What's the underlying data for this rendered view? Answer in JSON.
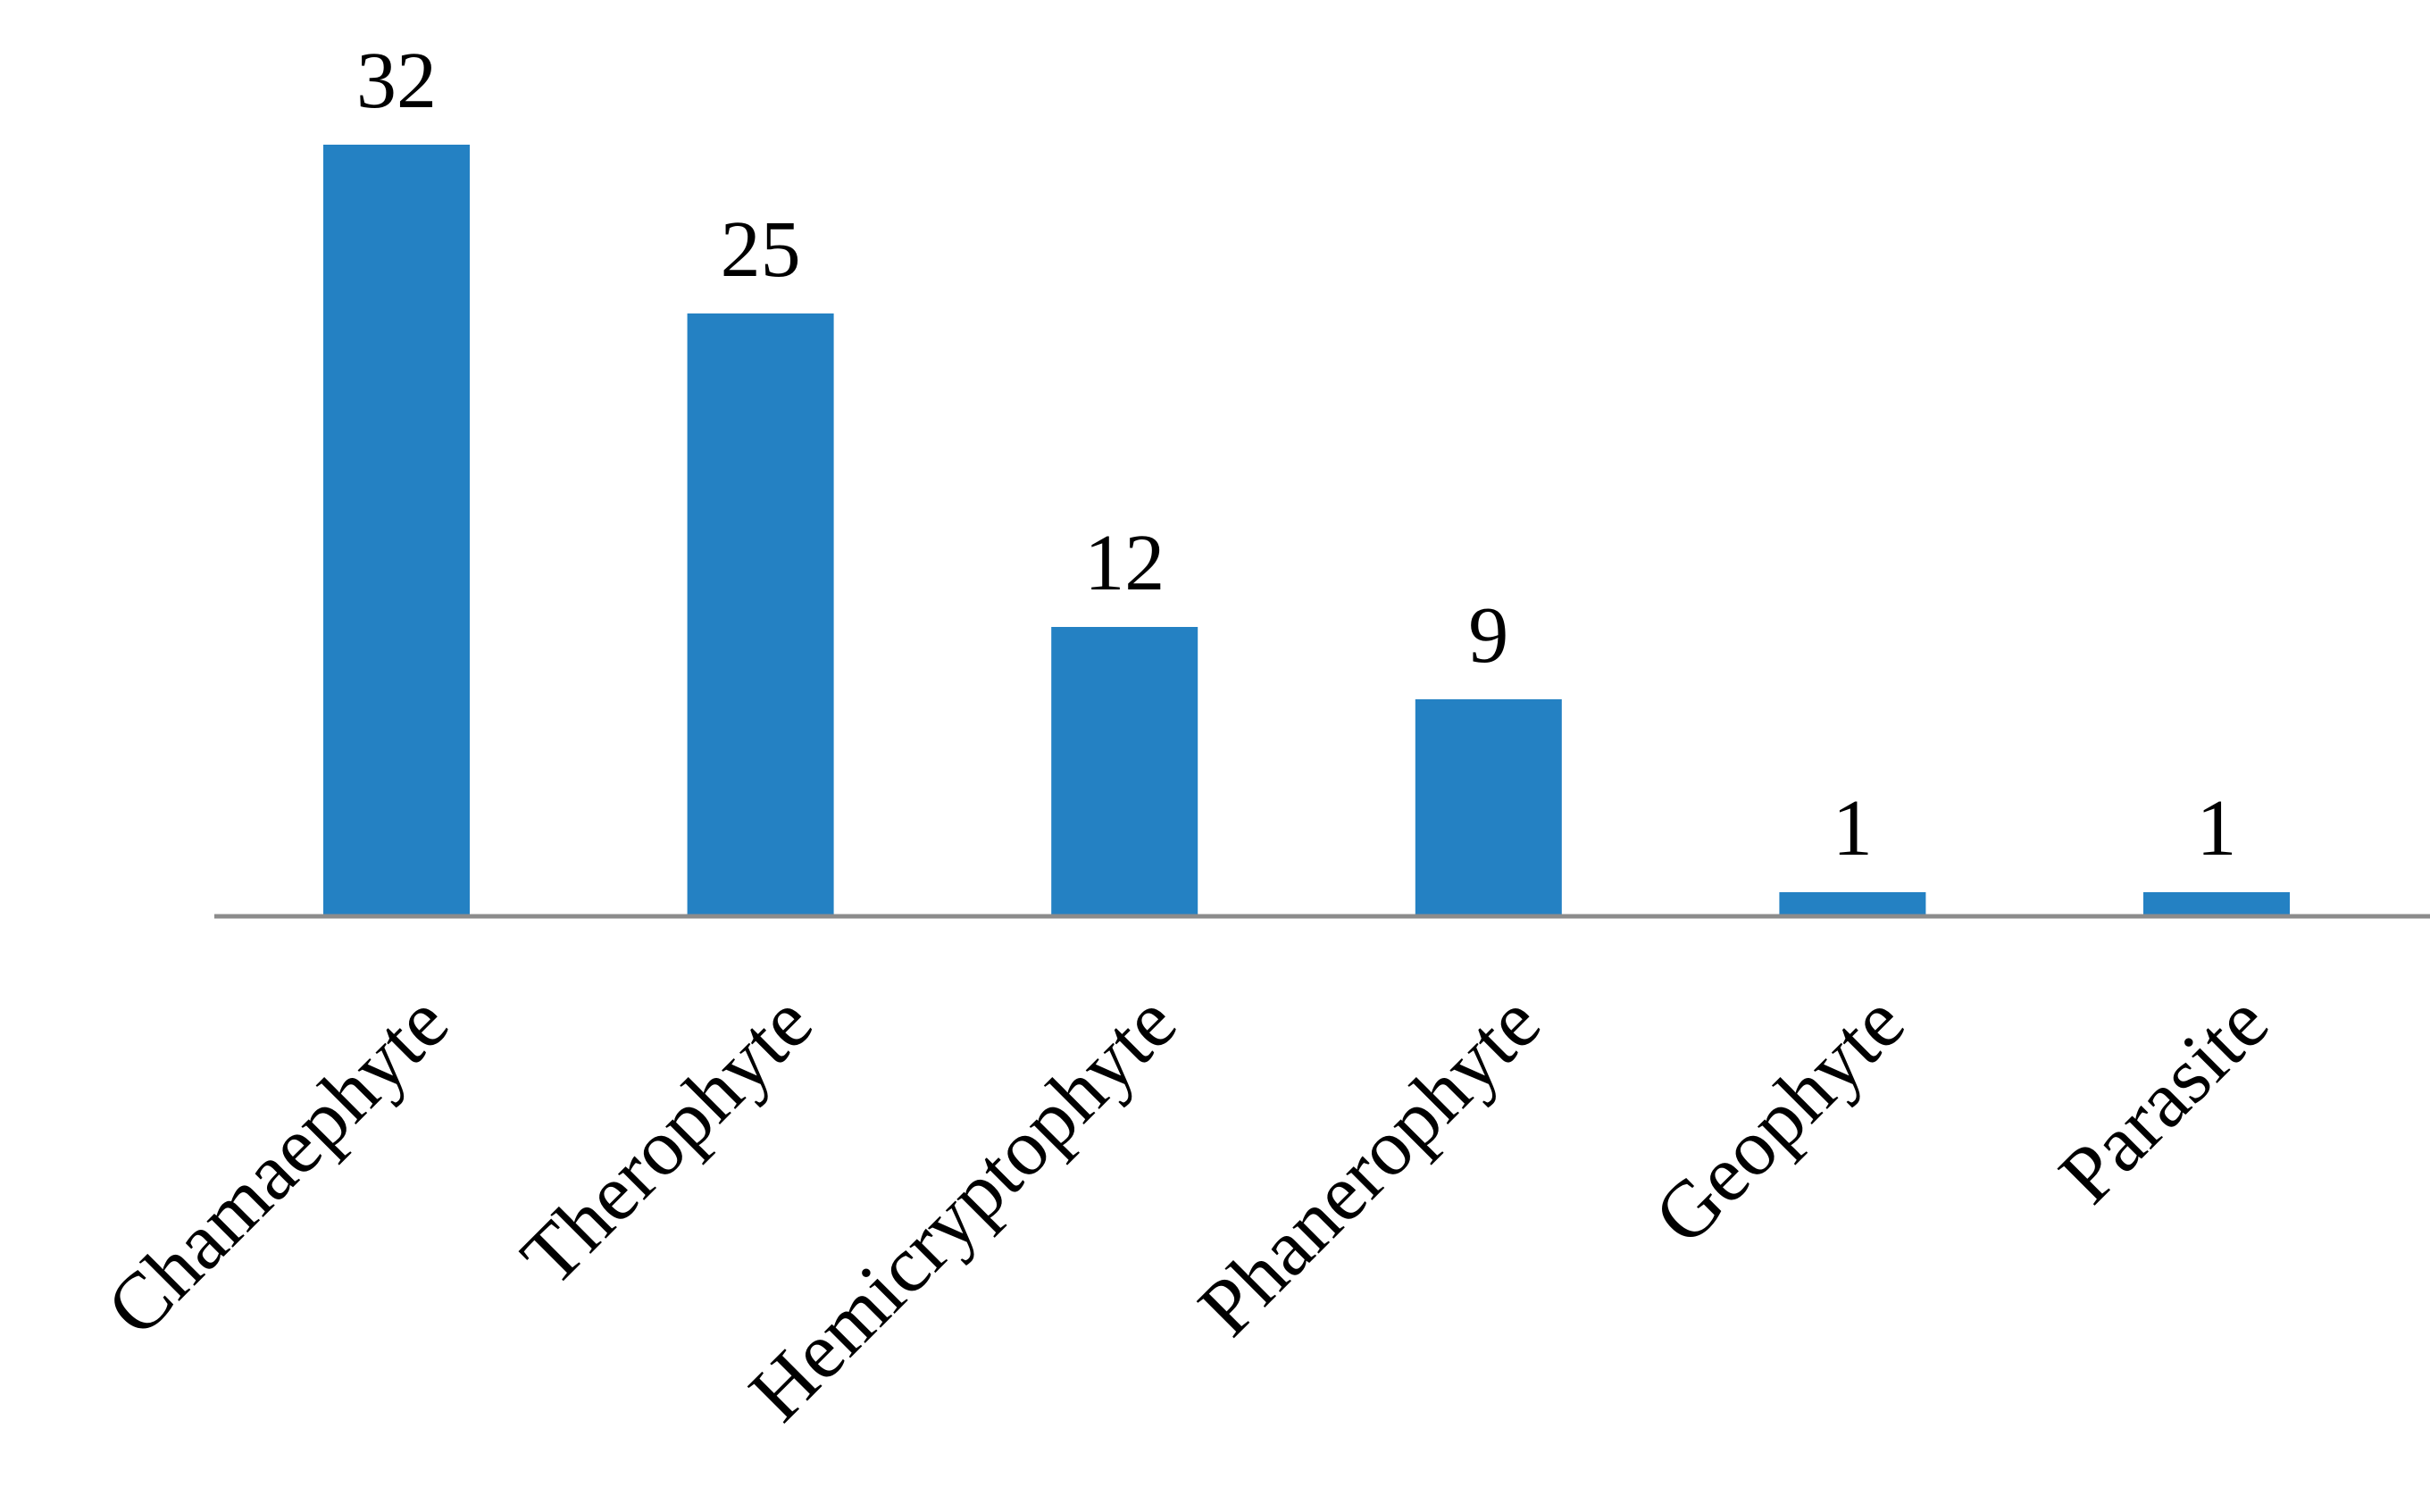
{
  "colors": {
    "bar": "#2481C3",
    "axis": "#8C8C8C",
    "text": "#000000",
    "background": "#FFFFFF"
  },
  "chart_data": {
    "type": "bar",
    "categories": [
      "Chamaephyte",
      "Therophyte",
      "Hemicryptophyte",
      "Phanerophyte",
      "Geophyte",
      "Parasite"
    ],
    "values": [
      32,
      25,
      12,
      9,
      1,
      1
    ],
    "data_labels": [
      "32",
      "25",
      "12",
      "9",
      "1",
      "1"
    ],
    "title": "",
    "xlabel": "",
    "ylabel": "",
    "ylim": [
      0,
      32
    ],
    "grid": false,
    "legend": "none",
    "x_tick_rotation_deg": -45
  }
}
